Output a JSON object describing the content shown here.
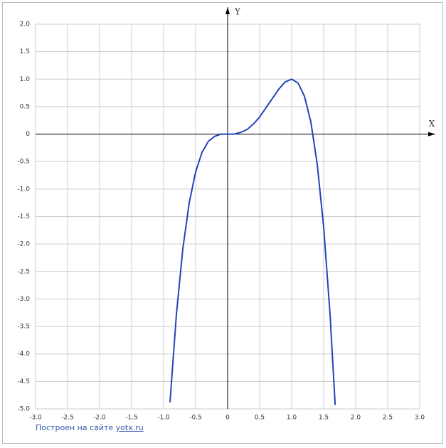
{
  "chart_data": {
    "type": "line",
    "x_label": "X",
    "y_label": "Y",
    "xlim": [
      -3,
      3
    ],
    "ylim": [
      -5,
      2
    ],
    "xticks": [
      {
        "value": -3,
        "label": "-3.0"
      },
      -2.5,
      {
        "value": -2,
        "label": "-2.0"
      },
      -1.5,
      {
        "value": -1,
        "label": "-1.0"
      },
      -0.5,
      0,
      0.5,
      {
        "value": 1,
        "label": "1.0"
      },
      1.5,
      {
        "value": 2,
        "label": "2.0"
      },
      2.5,
      {
        "value": 3,
        "label": "3.0"
      }
    ],
    "yticks": [
      {
        "value": 2,
        "label": "2.0"
      },
      1.5,
      {
        "value": 1,
        "label": "1.0"
      },
      0.5,
      0,
      -0.5,
      {
        "value": -1,
        "label": "-1.0"
      },
      -1.5,
      {
        "value": -2,
        "label": "-2.0"
      },
      -2.5,
      {
        "value": -3,
        "label": "-3.0"
      },
      -3.5,
      {
        "value": -4,
        "label": "-4.0"
      },
      -4.5,
      {
        "value": -5,
        "label": "-5.0"
      }
    ],
    "grid": true,
    "series": [
      {
        "color": "#2244bb",
        "x": [
          -0.9,
          -0.8,
          -0.7,
          -0.6,
          -0.5,
          -0.4,
          -0.3,
          -0.2,
          -0.1,
          0,
          0.1,
          0.2,
          0.3,
          0.4,
          0.5,
          0.6,
          0.7,
          0.8,
          0.9,
          1.0,
          1.1,
          1.2,
          1.3,
          1.4,
          1.5,
          1.6,
          1.68
        ],
        "values": [
          -4.88,
          -3.28,
          -2.09,
          -1.25,
          -0.69,
          -0.33,
          -0.13,
          -0.04,
          0,
          0,
          0,
          0.03,
          0.08,
          0.18,
          0.31,
          0.48,
          0.65,
          0.82,
          0.95,
          1,
          0.93,
          0.69,
          0.22,
          -0.55,
          -1.69,
          -3.28,
          -4.93
        ]
      }
    ]
  },
  "footer": {
    "text": "Построен на сайте",
    "link": "yotx.ru"
  }
}
